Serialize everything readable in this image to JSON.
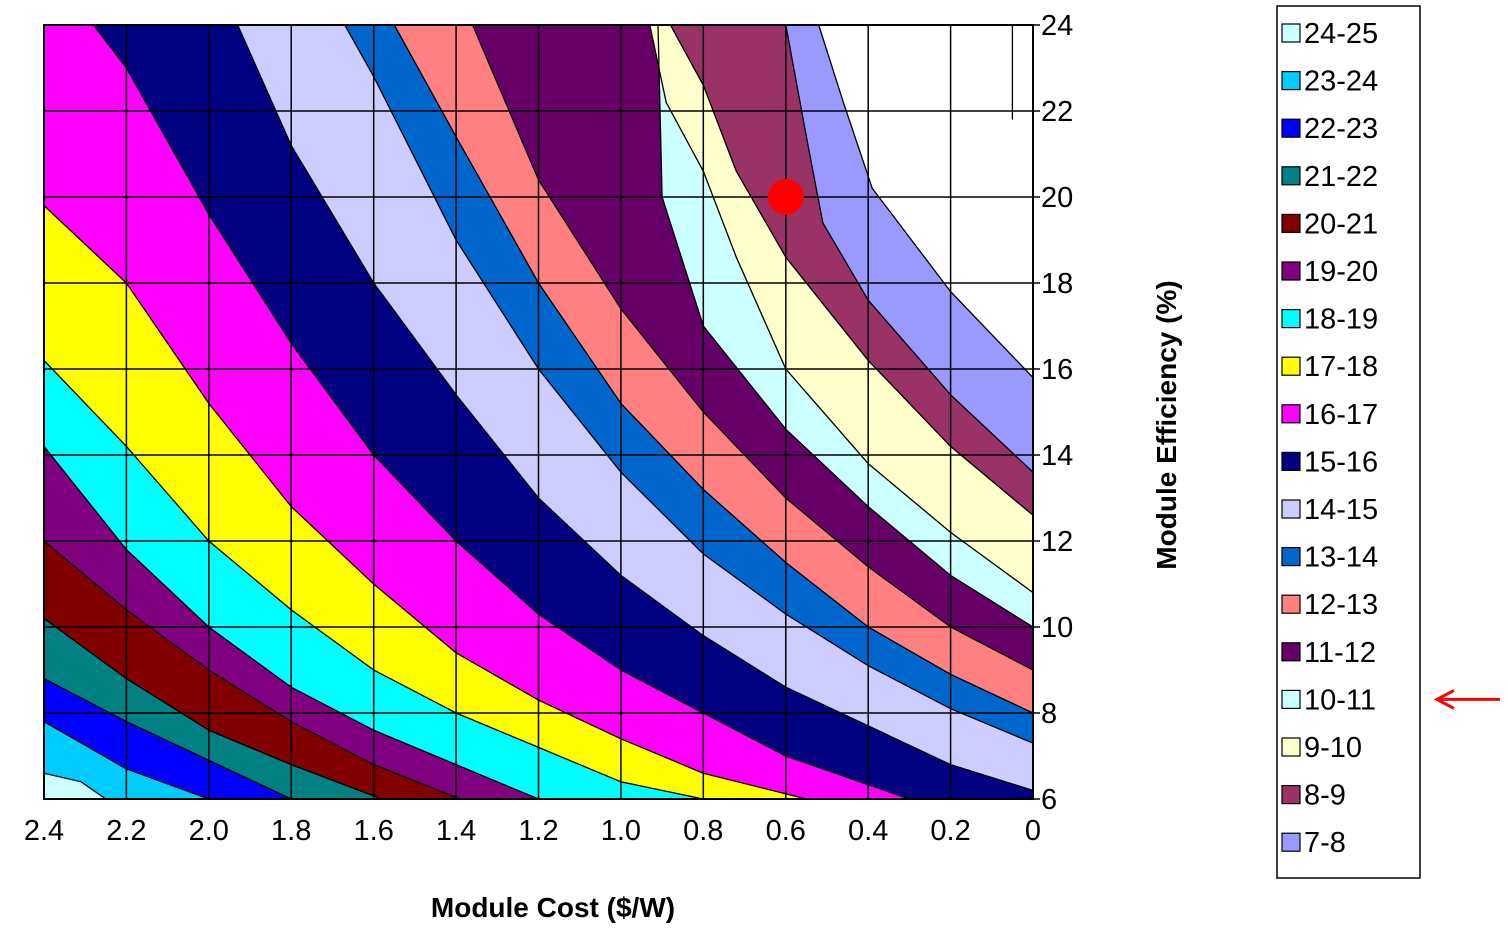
{
  "chart_data": {
    "type": "contour",
    "title": "",
    "xlabel": "Module Cost ($/W)",
    "ylabel": "Module Efficiency (%)",
    "x_axis": {
      "ticks": [
        2.4,
        2.2,
        2.0,
        1.8,
        1.6,
        1.4,
        1.2,
        1.0,
        0.8,
        0.6,
        0.4,
        0.2,
        0
      ],
      "tick_labels": [
        "2.4",
        "2.2",
        "2.0",
        "1.8",
        "1.6",
        "1.4",
        "1.2",
        "1.0",
        "0.8",
        "0.6",
        "0.4",
        "0.2",
        "0"
      ],
      "range": [
        2.4,
        0
      ],
      "reversed": true
    },
    "y_axis": {
      "ticks": [
        6,
        8,
        10,
        12,
        14,
        16,
        18,
        20,
        22,
        24
      ],
      "tick_labels": [
        "6",
        "8",
        "10",
        "12",
        "14",
        "16",
        "18",
        "20",
        "22",
        "24"
      ],
      "range": [
        6,
        24
      ],
      "side": "right"
    },
    "grid": true,
    "legend_position": "right",
    "legend": [
      {
        "label": "24-25",
        "color": "#ccffff"
      },
      {
        "label": "23-24",
        "color": "#00ccff"
      },
      {
        "label": "22-23",
        "color": "#0000ff"
      },
      {
        "label": "21-22",
        "color": "#008080"
      },
      {
        "label": "20-21",
        "color": "#800000"
      },
      {
        "label": "19-20",
        "color": "#800080"
      },
      {
        "label": "18-19",
        "color": "#00ffff"
      },
      {
        "label": "17-18",
        "color": "#ffff00"
      },
      {
        "label": "16-17",
        "color": "#ff00ff"
      },
      {
        "label": "15-16",
        "color": "#000080"
      },
      {
        "label": "14-15",
        "color": "#ccccff"
      },
      {
        "label": "13-14",
        "color": "#0066cc"
      },
      {
        "label": "12-13",
        "color": "#ff8080"
      },
      {
        "label": "11-12",
        "color": "#660066"
      },
      {
        "label": "10-11",
        "color": "#ccffff"
      },
      {
        "label": "9-10",
        "color": "#ffffcc"
      },
      {
        "label": "8-9",
        "color": "#993366"
      },
      {
        "label": "7-8",
        "color": "#9999ff"
      }
    ],
    "band_values": [
      25,
      24,
      23,
      22,
      21,
      20,
      19,
      18,
      17,
      16,
      15,
      14,
      13,
      12,
      11,
      10,
      9,
      8,
      7
    ],
    "band_boundary_points": [
      [
        [
          2.25,
          6
        ],
        [
          2.31,
          6.4
        ],
        [
          2.4,
          6.6
        ]
      ],
      [
        [
          2.0,
          6
        ],
        [
          2.2,
          6.7
        ],
        [
          2.4,
          7.8
        ]
      ],
      [
        [
          1.8,
          6
        ],
        [
          2.2,
          7.8
        ],
        [
          2.4,
          8.8
        ]
      ],
      [
        [
          1.58,
          6
        ],
        [
          1.8,
          6.8
        ],
        [
          2.0,
          7.6
        ],
        [
          2.2,
          8.8
        ],
        [
          2.4,
          10.2
        ]
      ],
      [
        [
          1.39,
          6
        ],
        [
          1.6,
          6.8
        ],
        [
          1.8,
          7.8
        ],
        [
          2.0,
          9.0
        ],
        [
          2.2,
          10.4
        ],
        [
          2.4,
          12.0
        ]
      ],
      [
        [
          1.2,
          6
        ],
        [
          1.4,
          6.8
        ],
        [
          1.6,
          7.6
        ],
        [
          1.8,
          8.6
        ],
        [
          2.0,
          10.0
        ],
        [
          2.2,
          11.8
        ],
        [
          2.4,
          14.2
        ]
      ],
      [
        [
          0.8,
          6
        ],
        [
          1.0,
          6.4
        ],
        [
          1.2,
          7.2
        ],
        [
          1.4,
          8.0
        ],
        [
          1.6,
          9.0
        ],
        [
          1.8,
          10.4
        ],
        [
          2.0,
          12.0
        ],
        [
          2.2,
          14.2
        ],
        [
          2.4,
          16.2
        ]
      ],
      [
        [
          0.55,
          6
        ],
        [
          0.8,
          6.6
        ],
        [
          1.0,
          7.4
        ],
        [
          1.2,
          8.3
        ],
        [
          1.4,
          9.4
        ],
        [
          1.6,
          11.0
        ],
        [
          1.8,
          12.8
        ],
        [
          2.0,
          15.2
        ],
        [
          2.2,
          18.0
        ],
        [
          2.4,
          19.8
        ]
      ],
      [
        [
          0.3,
          6
        ],
        [
          0.6,
          7.0
        ],
        [
          0.8,
          8.0
        ],
        [
          1.0,
          9.0
        ],
        [
          1.2,
          10.3
        ],
        [
          1.4,
          12.0
        ],
        [
          1.6,
          14.0
        ],
        [
          1.8,
          16.6
        ],
        [
          2.0,
          19.6
        ],
        [
          2.2,
          23.0
        ],
        [
          2.32,
          24.5
        ]
      ],
      [
        [
          0,
          6.2
        ],
        [
          0.2,
          6.8
        ],
        [
          0.4,
          7.7
        ],
        [
          0.6,
          8.6
        ],
        [
          0.8,
          9.8
        ],
        [
          1.0,
          11.2
        ],
        [
          1.2,
          13.0
        ],
        [
          1.4,
          15.4
        ],
        [
          1.6,
          18.0
        ],
        [
          1.8,
          21.2
        ],
        [
          1.93,
          24
        ]
      ],
      [
        [
          0,
          7.3
        ],
        [
          0.2,
          8.1
        ],
        [
          0.4,
          9.1
        ],
        [
          0.6,
          10.3
        ],
        [
          0.8,
          11.7
        ],
        [
          1.0,
          13.6
        ],
        [
          1.2,
          16.0
        ],
        [
          1.4,
          19.0
        ],
        [
          1.6,
          22.8
        ],
        [
          1.67,
          24
        ]
      ],
      [
        [
          0,
          8.0
        ],
        [
          0.2,
          8.9
        ],
        [
          0.4,
          10.0
        ],
        [
          0.6,
          11.5
        ],
        [
          0.8,
          13.2
        ],
        [
          1.0,
          15.2
        ],
        [
          1.2,
          18.0
        ],
        [
          1.4,
          21.4
        ],
        [
          1.55,
          24
        ]
      ],
      [
        [
          0,
          9.0
        ],
        [
          0.2,
          10.0
        ],
        [
          0.4,
          11.4
        ],
        [
          0.6,
          13.0
        ],
        [
          0.8,
          15.0
        ],
        [
          1.0,
          17.4
        ],
        [
          1.2,
          20.4
        ],
        [
          1.36,
          24
        ]
      ],
      [
        [
          0,
          10.0
        ],
        [
          0.2,
          11.2
        ],
        [
          0.4,
          12.8
        ],
        [
          0.6,
          14.6
        ],
        [
          0.8,
          17.0
        ],
        [
          0.9,
          20.0
        ],
        [
          0.91,
          24
        ]
      ],
      [
        [
          0,
          10.8
        ],
        [
          0.2,
          12.2
        ],
        [
          0.4,
          13.8
        ],
        [
          0.6,
          16.0
        ],
        [
          0.72,
          18.6
        ],
        [
          0.8,
          20.6
        ],
        [
          0.89,
          22.2
        ],
        [
          0.93,
          24
        ]
      ],
      [
        [
          0,
          12.6
        ],
        [
          0.2,
          14.2
        ],
        [
          0.4,
          16.2
        ],
        [
          0.6,
          18.6
        ],
        [
          0.72,
          20.6
        ],
        [
          0.8,
          22.6
        ],
        [
          0.88,
          24
        ]
      ],
      [
        [
          0,
          13.6
        ],
        [
          0.2,
          15.4
        ],
        [
          0.4,
          17.6
        ],
        [
          0.51,
          19.4
        ],
        [
          0.55,
          21.4
        ],
        [
          0.6,
          24
        ]
      ],
      [
        [
          0,
          15.8
        ],
        [
          0.2,
          17.8
        ],
        [
          0.39,
          20.2
        ],
        [
          0.46,
          22.2
        ],
        [
          0.52,
          24
        ]
      ],
      [
        [
          0.05,
          21.8
        ],
        [
          0.05,
          24
        ]
      ]
    ],
    "annotations": [
      {
        "type": "point",
        "x": 0.6,
        "y": 20,
        "color": "#ff0000"
      },
      {
        "type": "arrow",
        "target": "10-11",
        "color": "#ff0000"
      }
    ]
  }
}
